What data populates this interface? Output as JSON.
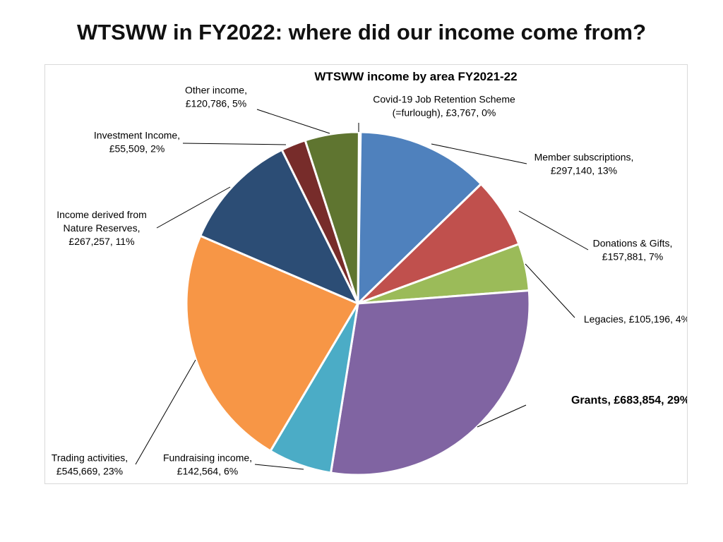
{
  "page": {
    "title": "WTSWW in FY2022: where did our income come from?"
  },
  "chart_data": {
    "type": "pie",
    "title": "WTSWW income by area FY2021-22",
    "currency_symbol": "£",
    "slices": [
      {
        "name": "Covid-19 Job Retention Scheme (=furlough)",
        "value": 3767,
        "percent": 0,
        "color": "#7f8fa6",
        "label_lines": [
          "Covid-19 Job Retention Scheme",
          "(=furlough), £3,767, 0%"
        ],
        "bold": false
      },
      {
        "name": "Member subscriptions",
        "value": 297140,
        "percent": 13,
        "color": "#4f81bd",
        "label_lines": [
          "Member subscriptions,",
          "£297,140, 13%"
        ],
        "bold": false
      },
      {
        "name": "Donations & Gifts",
        "value": 157881,
        "percent": 7,
        "color": "#c0504d",
        "label_lines": [
          "Donations & Gifts,",
          "£157,881, 7%"
        ],
        "bold": false
      },
      {
        "name": "Legacies",
        "value": 105196,
        "percent": 4,
        "color": "#9bbb59",
        "label_lines": [
          "Legacies, £105,196, 4%"
        ],
        "bold": false
      },
      {
        "name": "Grants",
        "value": 683854,
        "percent": 29,
        "color": "#8064a2",
        "label_lines": [
          "Grants, £683,854, 29%"
        ],
        "bold": true
      },
      {
        "name": "Fundraising income",
        "value": 142564,
        "percent": 6,
        "color": "#4bacc6",
        "label_lines": [
          "Fundraising income,",
          "£142,564, 6%"
        ],
        "bold": false
      },
      {
        "name": "Trading activities",
        "value": 545669,
        "percent": 23,
        "color": "#f79646",
        "label_lines": [
          "Trading activities,",
          "£545,669, 23%"
        ],
        "bold": false
      },
      {
        "name": "Income derived from Nature Reserves",
        "value": 267257,
        "percent": 11,
        "color": "#2c4d75",
        "label_lines": [
          "Income derived from",
          "Nature Reserves,",
          "£267,257, 11%"
        ],
        "bold": false
      },
      {
        "name": "Investment Income",
        "value": 55509,
        "percent": 2,
        "color": "#772c2a",
        "label_lines": [
          "Investment Income,",
          "£55,509, 2%"
        ],
        "bold": false
      },
      {
        "name": "Other income",
        "value": 120786,
        "percent": 5,
        "color": "#5f7530",
        "label_lines": [
          "Other income,",
          "£120,786, 5%"
        ],
        "bold": false
      }
    ],
    "start_angle": "12 o'clock",
    "direction": "clockwise",
    "legend": "none",
    "data_labels": "outside with leader lines"
  }
}
